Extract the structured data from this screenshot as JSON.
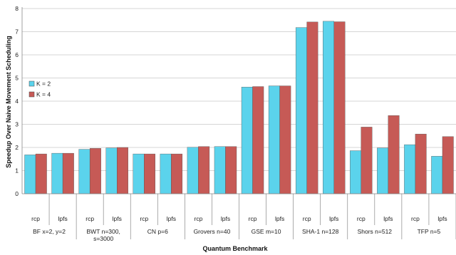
{
  "chart_data": {
    "type": "bar",
    "title": "",
    "xlabel": "Quantum Benchmark",
    "ylabel": "Speedup Over Naive Movement Scheduling",
    "ylim": [
      0,
      8
    ],
    "yticks": [
      0,
      1,
      2,
      3,
      4,
      5,
      6,
      7,
      8
    ],
    "grid": true,
    "legend_position": "left-middle",
    "groups": [
      {
        "label": "BF x=2, y=2",
        "subcategories": [
          "rcp",
          "lpfs"
        ]
      },
      {
        "label": "BWT n=300, s=3000",
        "subcategories": [
          "rcp",
          "lpfs"
        ]
      },
      {
        "label": "CN p=6",
        "subcategories": [
          "rcp",
          "lpfs"
        ]
      },
      {
        "label": "Grovers n=40",
        "subcategories": [
          "rcp",
          "lpfs"
        ]
      },
      {
        "label": "GSE m=10",
        "subcategories": [
          "rcp",
          "lpfs"
        ]
      },
      {
        "label": "SHA-1 n=128",
        "subcategories": [
          "rcp",
          "lpfs"
        ]
      },
      {
        "label": "Shors n=512",
        "subcategories": [
          "rcp",
          "lpfs"
        ]
      },
      {
        "label": "TFP n=5",
        "subcategories": [
          "rcp",
          "lpfs"
        ]
      }
    ],
    "series": [
      {
        "name": "K = 2",
        "color": "#5bd3ec",
        "values": [
          1.68,
          1.75,
          1.92,
          1.98,
          1.72,
          1.72,
          2.01,
          2.04,
          4.61,
          4.66,
          7.18,
          7.45,
          1.86,
          1.98,
          2.12,
          1.62
        ]
      },
      {
        "name": "K = 4",
        "color": "#c65a56",
        "values": [
          1.72,
          1.75,
          1.96,
          2.0,
          1.72,
          1.72,
          2.04,
          2.04,
          4.63,
          4.66,
          7.42,
          7.43,
          2.88,
          3.38,
          2.58,
          2.47
        ]
      }
    ]
  },
  "axis_line_color": "#888888"
}
